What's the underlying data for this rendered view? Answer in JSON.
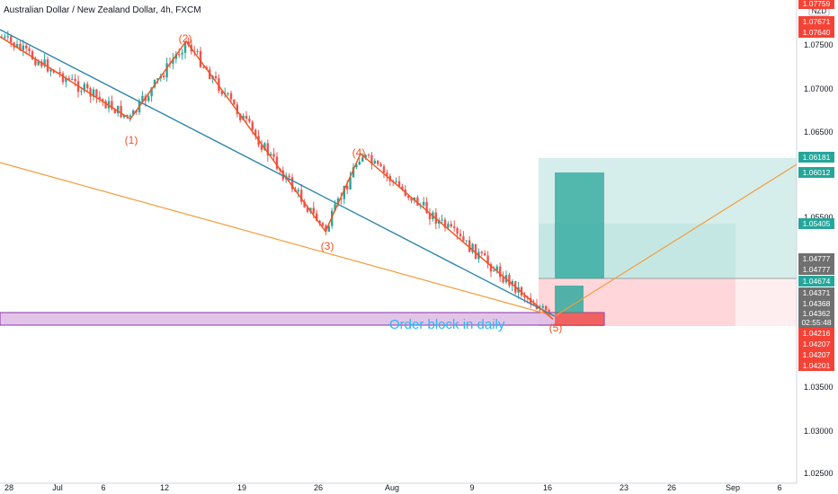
{
  "header": {
    "symbol_title": "Australian Dollar / New Zealand Dollar, 4h, FXCM"
  },
  "currency_badge": "NZD",
  "colors": {
    "up": "#26a69a",
    "down": "#ef5350",
    "wave": "#f4511e",
    "trend": "#2e86ab",
    "channel": "#f39c3c",
    "order_block_fill": "#e1bee7",
    "order_block_border": "#7b1fa2",
    "order_block_text": "#29b6f6",
    "target_zone": "#b2dfdb",
    "stop_zone": "#ffcdd2"
  },
  "chart_data": {
    "type": "candlestick",
    "y_axis": {
      "range": [
        1.0245,
        1.0785
      ],
      "ticks": [
        "1.07500",
        "1.07000",
        "1.06500",
        "1.05500",
        "1.04500",
        "1.03500",
        "1.03000",
        "1.02500"
      ]
    },
    "x_axis": {
      "ticks": [
        "28",
        "Jul",
        "6",
        "12",
        "19",
        "26",
        "Aug",
        "9",
        "16",
        "23",
        "26",
        "Sep",
        "6"
      ]
    },
    "price_labels": [
      {
        "text": "1.07759",
        "kind": "red"
      },
      {
        "text": "1.07671",
        "kind": "red"
      },
      {
        "text": "1.07640",
        "kind": "red"
      },
      {
        "text": "1.06181",
        "kind": "green"
      },
      {
        "text": "1.06012",
        "kind": "green"
      },
      {
        "text": "1.05405",
        "kind": "green"
      },
      {
        "text": "1.04777",
        "kind": "gray"
      },
      {
        "text": "1.04777",
        "kind": "gray"
      },
      {
        "text": "1.04674",
        "kind": "green"
      },
      {
        "text": "1.04371",
        "kind": "gray"
      },
      {
        "text": "1.04368",
        "kind": "gray"
      },
      {
        "text": "1.04362",
        "kind": "gray"
      },
      {
        "text": "02:55:48",
        "kind": "gray"
      },
      {
        "text": "1.04216",
        "kind": "red"
      },
      {
        "text": "1.04207",
        "kind": "red"
      },
      {
        "text": "1.04207",
        "kind": "red"
      },
      {
        "text": "1.04201",
        "kind": "red"
      }
    ],
    "wave_labels": [
      "(1)",
      "(2)",
      "(3)",
      "(4)",
      "(5)"
    ],
    "wave_points": [
      {
        "label": "start",
        "price": 1.0745
      },
      {
        "label": "(1)",
        "price": 1.0655
      },
      {
        "label": "(2)",
        "price": 1.074
      },
      {
        "label": "(3)",
        "price": 1.0532
      },
      {
        "label": "(4)",
        "price": 1.0617
      },
      {
        "label": "(5)",
        "price": 1.0436
      }
    ],
    "annotations": {
      "order_block": "Order block in daily"
    },
    "zones": {
      "order_block": [
        1.0424,
        1.0438
      ],
      "position_entry": 1.0467,
      "position_target": 1.0618,
      "position_stop": 1.0422
    },
    "grid": false,
    "legend": "none"
  }
}
